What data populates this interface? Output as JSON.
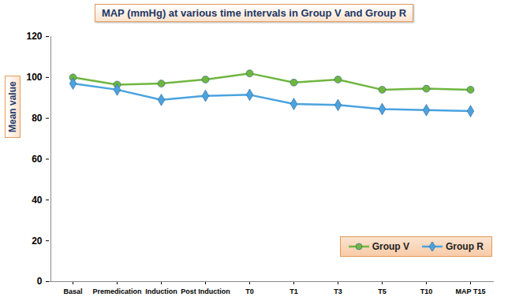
{
  "chart_data": {
    "type": "line",
    "title": "MAP (mmHg) at various time intervals in Group V and Group R",
    "y_label": "Mean value",
    "categories": [
      "Basal",
      "Premedication",
      "Induction",
      "Post Induction",
      "T0",
      "T1",
      "T3",
      "T5",
      "T10",
      "MAP T15"
    ],
    "series": [
      {
        "name": "Group V",
        "color": "#6fb63f",
        "marker": "circle",
        "values": [
          100,
          96.5,
          97,
          99,
          102,
          97.5,
          99,
          94,
          94.5,
          94
        ]
      },
      {
        "name": "Group R",
        "color": "#4aa3df",
        "marker": "diamond",
        "values": [
          97,
          94,
          89,
          91,
          91.5,
          87,
          86.5,
          84.5,
          84,
          83.5
        ]
      }
    ],
    "ylim": [
      0,
      120
    ],
    "yticks": [
      0,
      20,
      40,
      60,
      80,
      100,
      120
    ],
    "grid": false,
    "legend": "bottom-right"
  }
}
